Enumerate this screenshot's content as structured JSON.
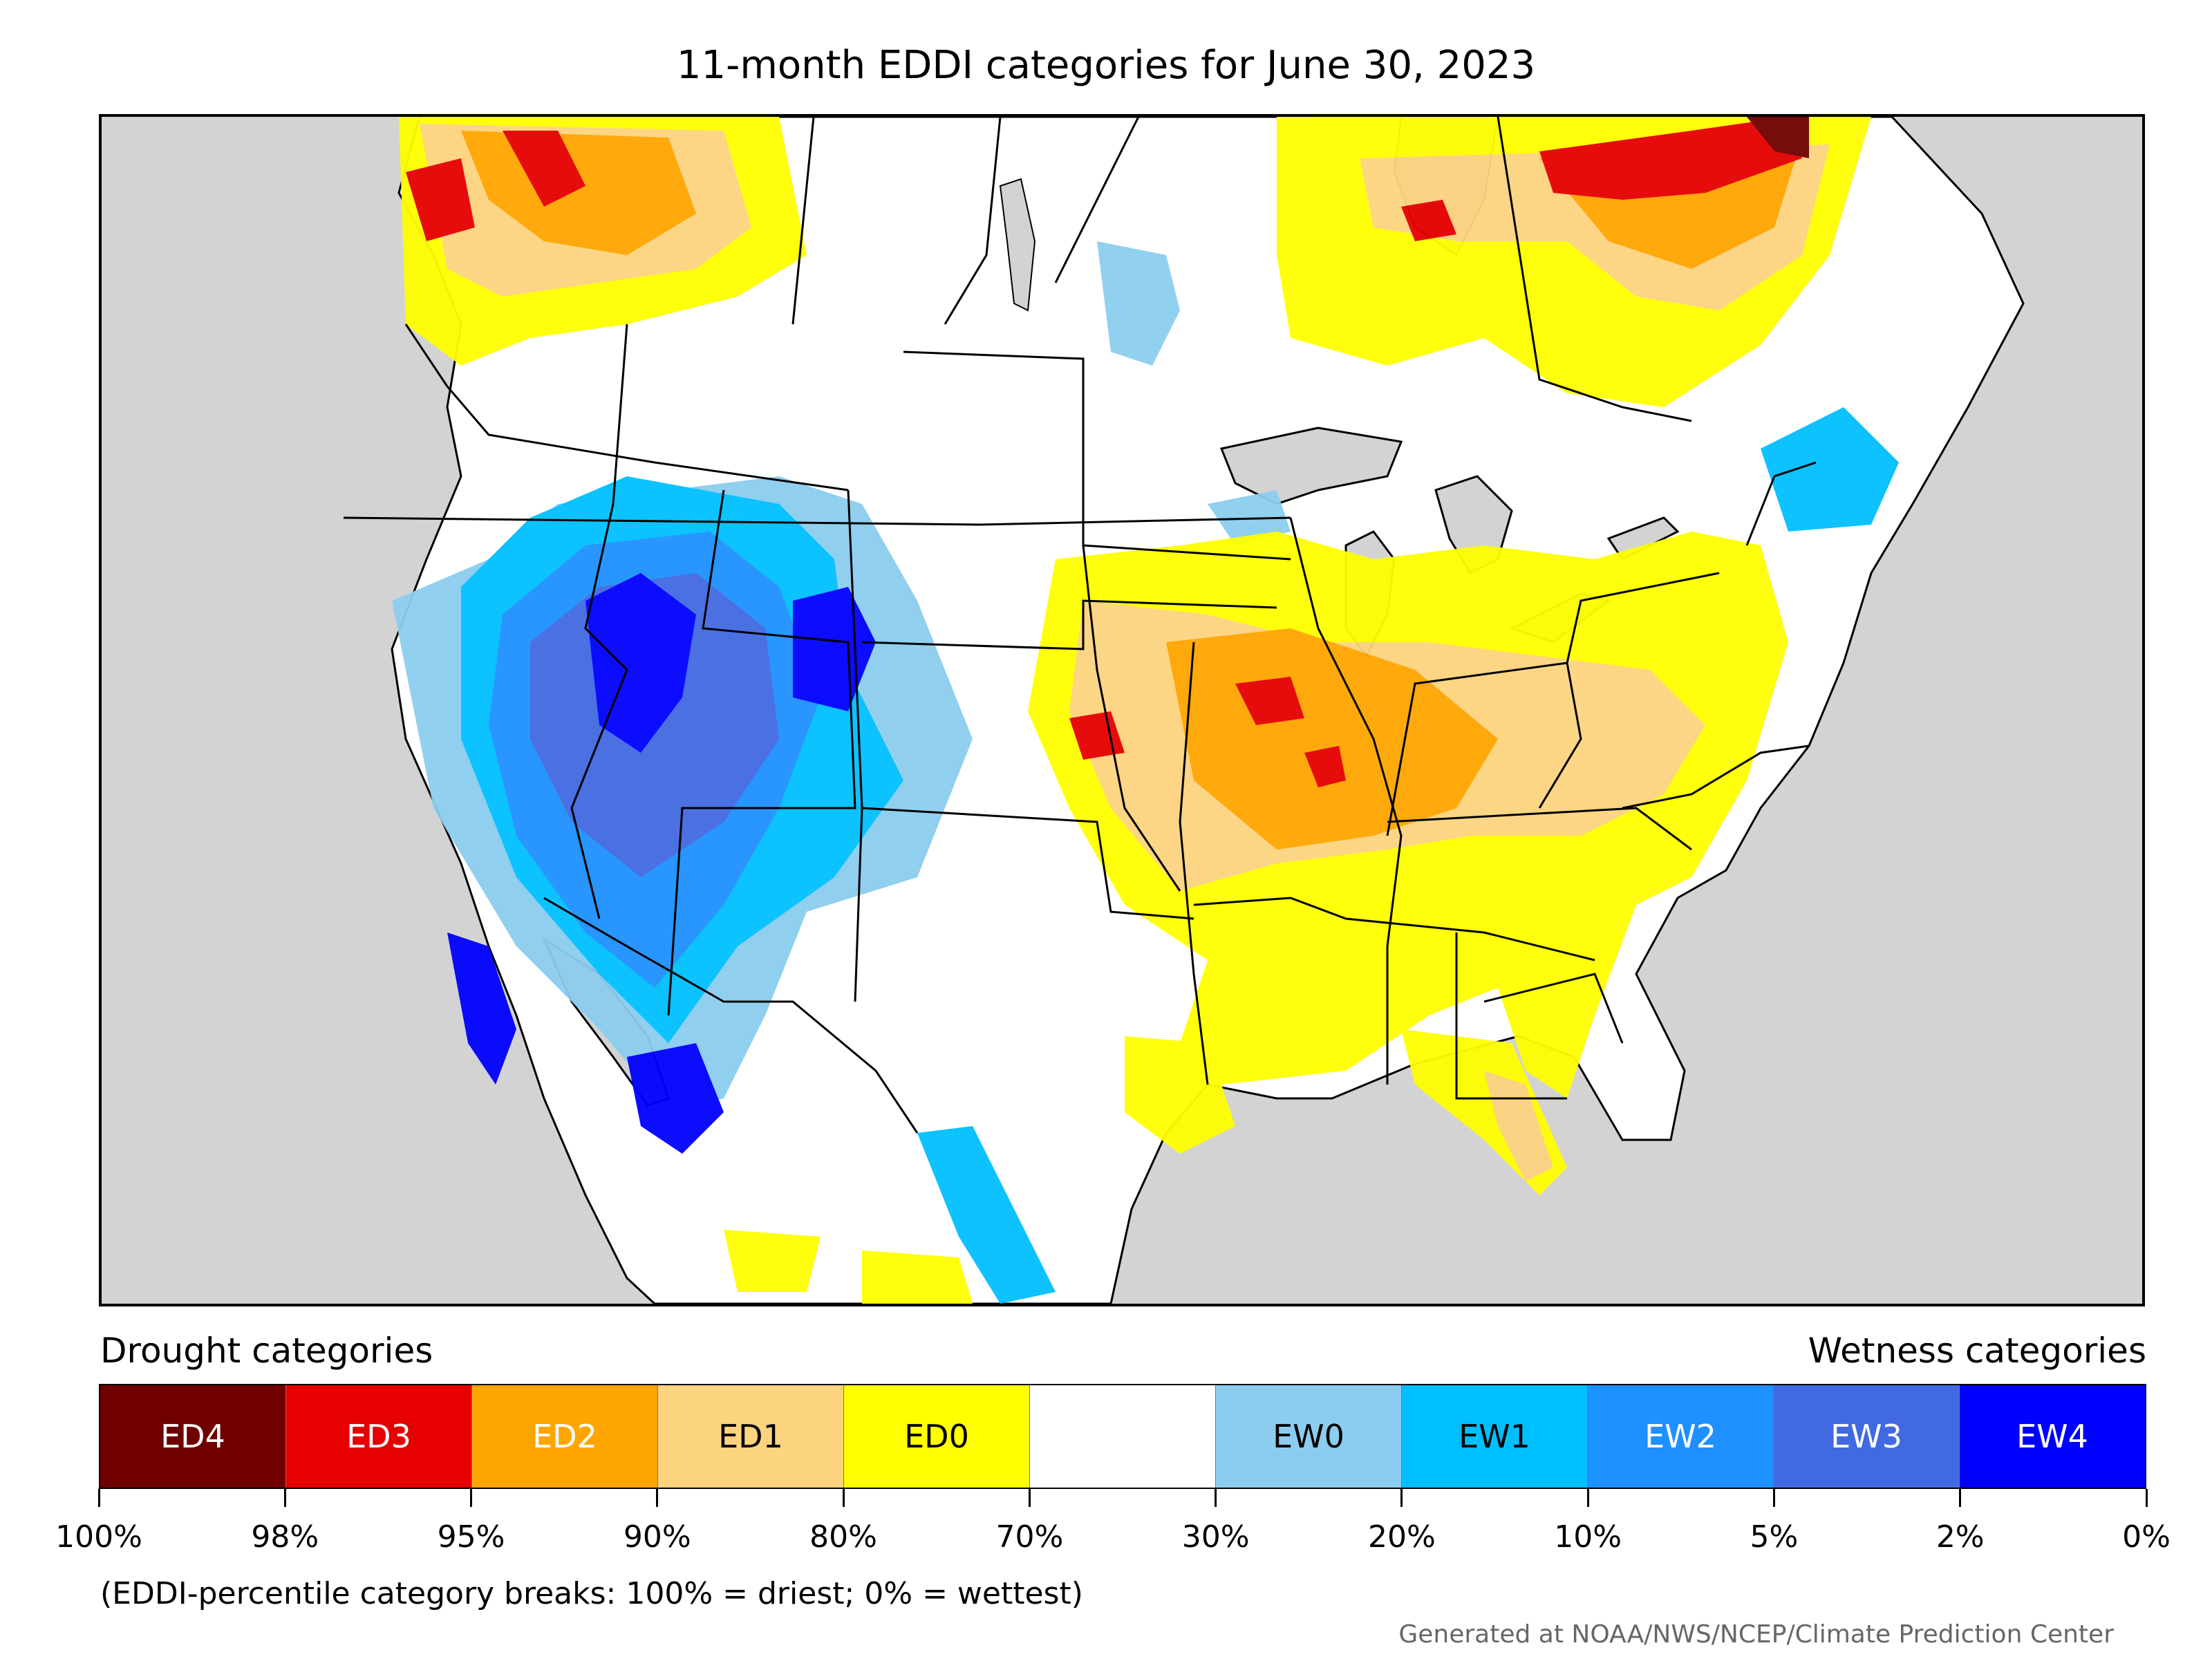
{
  "title": "11-month EDDI categories for June 30, 2023",
  "legend": {
    "drought_heading": "Drought categories",
    "wetness_heading": "Wetness categories",
    "categories": [
      {
        "label": "ED4",
        "color": "#700000",
        "text_color": "#ffffff"
      },
      {
        "label": "ED3",
        "color": "#e60000",
        "text_color": "#ffffff"
      },
      {
        "label": "ED2",
        "color": "#ffa500",
        "text_color": "#ffffff"
      },
      {
        "label": "ED1",
        "color": "#fcd37f",
        "text_color": "#000000"
      },
      {
        "label": "ED0",
        "color": "#ffff00",
        "text_color": "#000000"
      },
      {
        "label": "",
        "color": "#ffffff",
        "text_color": "#000000"
      },
      {
        "label": "EW0",
        "color": "#8ccdef",
        "text_color": "#000000"
      },
      {
        "label": "EW1",
        "color": "#00bfff",
        "text_color": "#000000"
      },
      {
        "label": "EW2",
        "color": "#1e90ff",
        "text_color": "#ffffff"
      },
      {
        "label": "EW3",
        "color": "#4169e1",
        "text_color": "#ffffff"
      },
      {
        "label": "EW4",
        "color": "#0000ff",
        "text_color": "#ffffff"
      }
    ],
    "tick_labels": [
      "100%",
      "98%",
      "95%",
      "90%",
      "80%",
      "70%",
      "30%",
      "20%",
      "10%",
      "5%",
      "2%",
      "0%"
    ],
    "note": "(EDDI-percentile category breaks: 100% = driest; 0% = wettest)"
  },
  "credit": "Generated at NOAA/NWS/NCEP/Climate Prediction Center"
}
